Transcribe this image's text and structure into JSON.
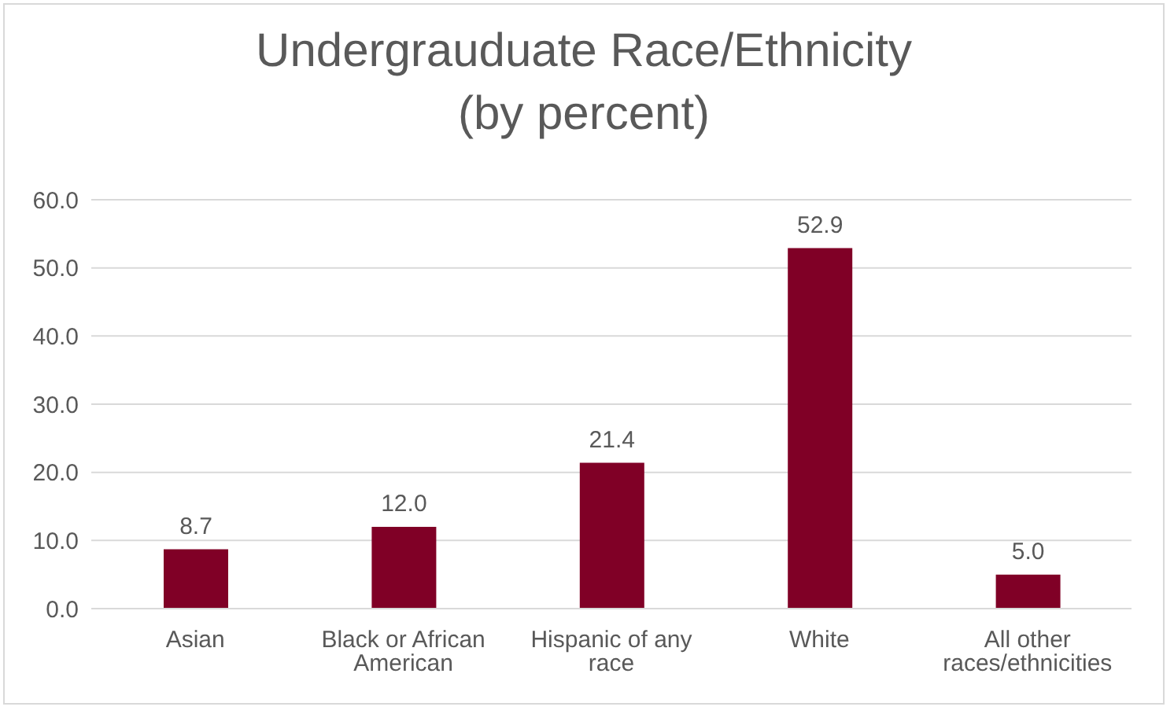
{
  "chart_data": {
    "type": "bar",
    "title": "Undergrauduate Race/Ethnicity",
    "subtitle": "(by percent)",
    "categories": [
      "Asian",
      "Black or African American",
      "Hispanic of any race",
      "White",
      "All other races/ethnicities"
    ],
    "values": [
      8.7,
      12.0,
      21.4,
      52.9,
      5.0
    ],
    "value_labels": [
      "8.7",
      "12.0",
      "21.4",
      "52.9",
      "5.0"
    ],
    "color": "#800026",
    "ylim": [
      0,
      60
    ],
    "yticks": [
      {
        "value": 0,
        "label": "0.0"
      },
      {
        "value": 10,
        "label": "10.0"
      },
      {
        "value": 20,
        "label": "20.0"
      },
      {
        "value": 30,
        "label": "30.0"
      },
      {
        "value": 40,
        "label": "40.0"
      },
      {
        "value": 50,
        "label": "50.0"
      },
      {
        "value": 60,
        "label": "60.0"
      }
    ],
    "grid": "y"
  }
}
